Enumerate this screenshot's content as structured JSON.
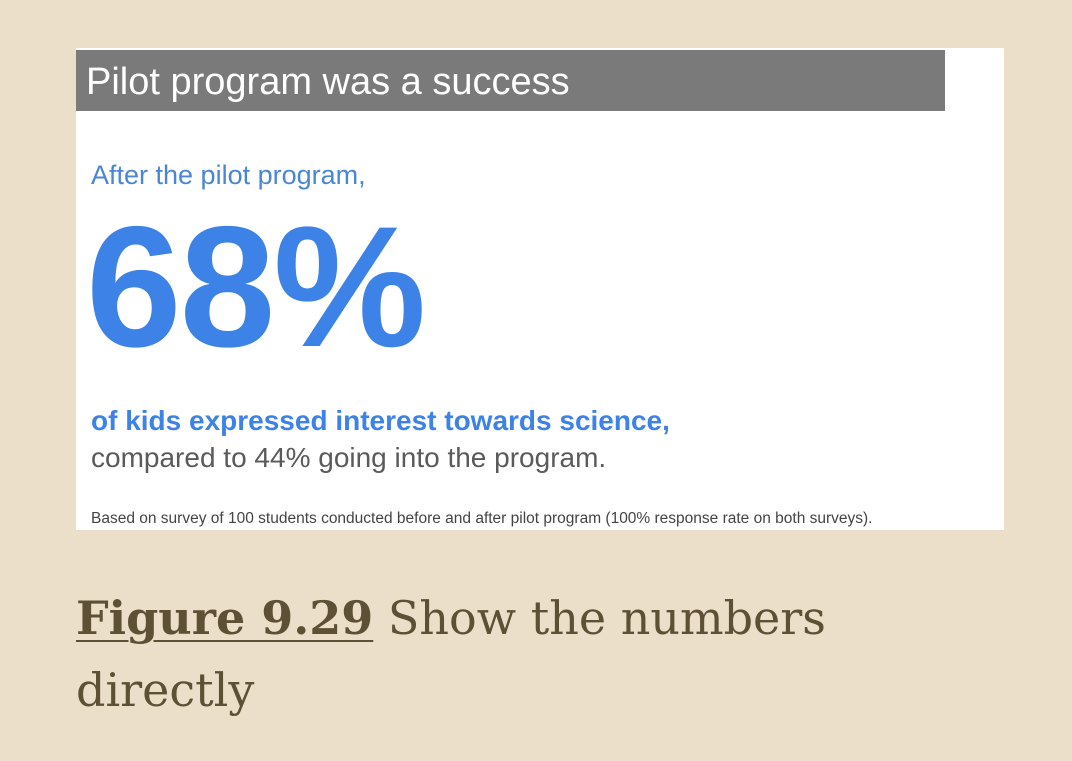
{
  "slide": {
    "title": "Pilot program was a success",
    "lead": "After the pilot program,",
    "big_number": "68%",
    "statement": "of kids expressed interest towards science,",
    "comparison": "compared to 44% going into the program.",
    "footnote": "Based on survey of 100 students conducted before and after pilot program (100% response rate on both surveys).",
    "colors": {
      "title_bar": "#7a7a7a",
      "accent_blue": "#3d82e6",
      "body_gray": "#5a5a5a"
    }
  },
  "caption": {
    "figure_ref": "Figure 9.29",
    "text": " Show the numbers directly"
  },
  "page": {
    "background": "#ebdfca",
    "caption_color": "#5e5034"
  }
}
